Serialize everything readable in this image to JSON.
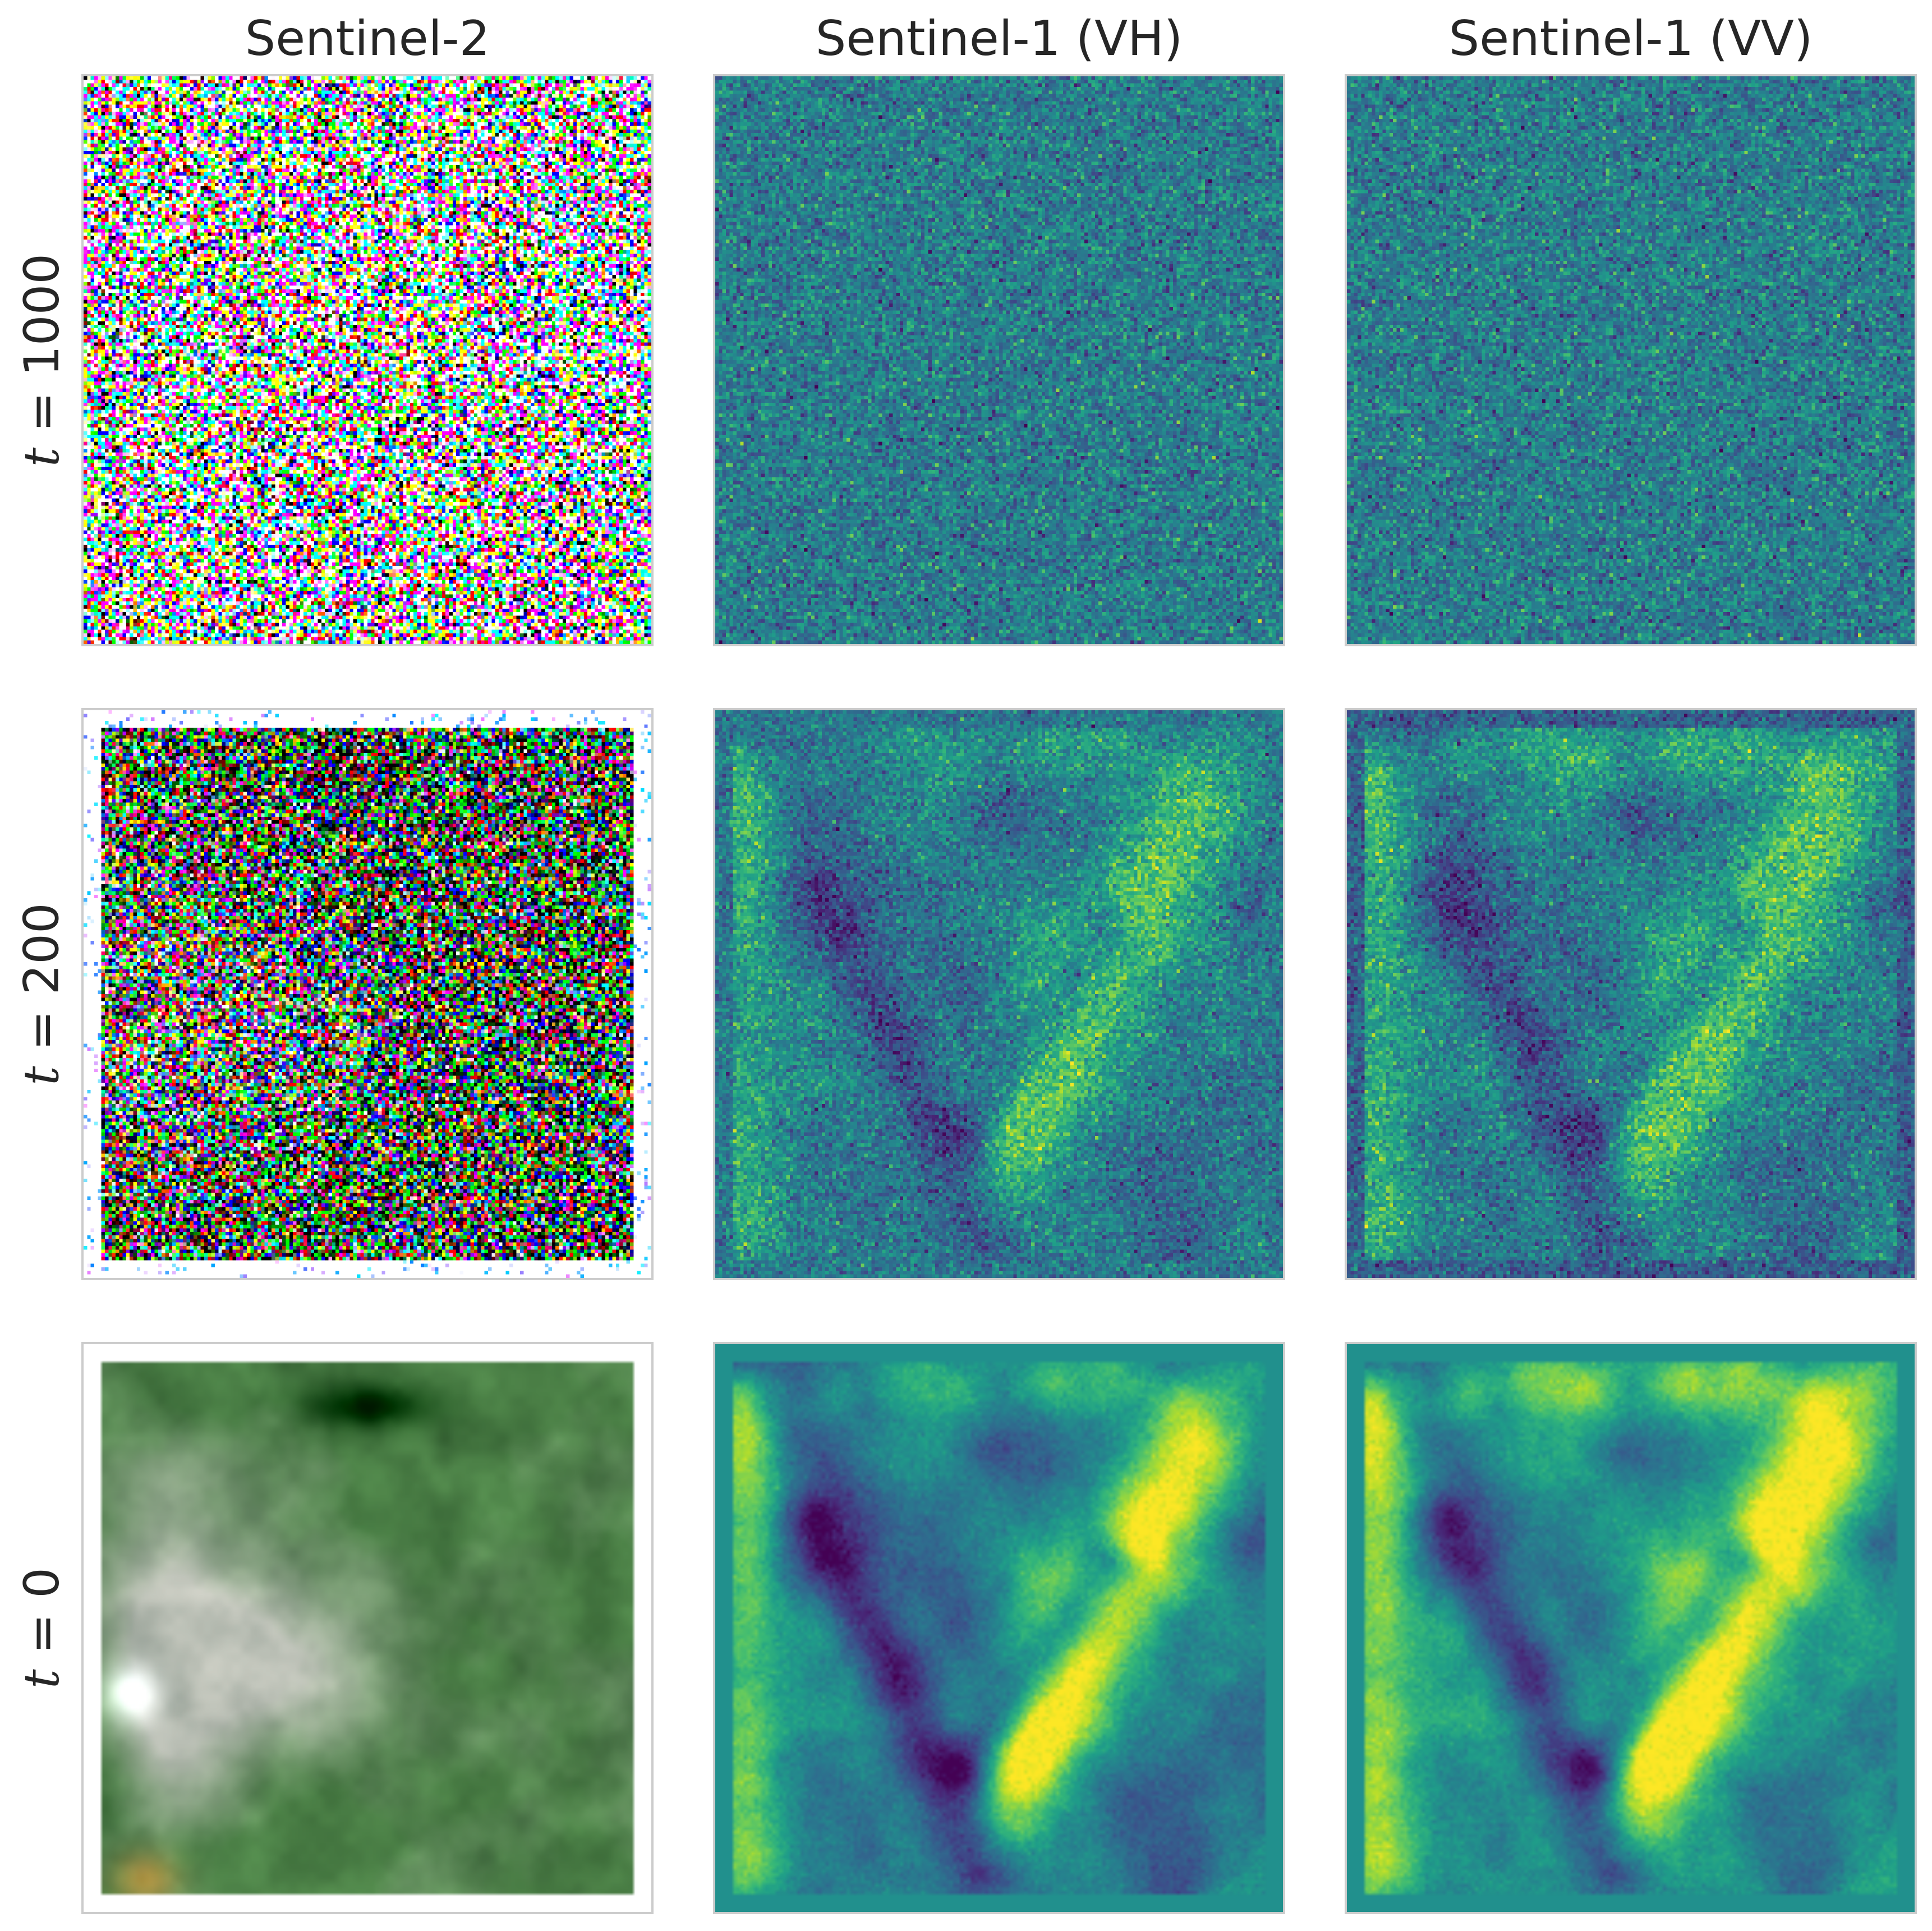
{
  "columns": [
    "Sentinel-2",
    "Sentinel-1 (VH)",
    "Sentinel-1 (VV)"
  ],
  "rows": [
    {
      "variable": "t",
      "operator": " = ",
      "value": "1000"
    },
    {
      "variable": "t",
      "operator": " = ",
      "value": "200"
    },
    {
      "variable": "t",
      "operator": " = ",
      "value": "0"
    }
  ],
  "colors": {
    "panel_border": "#cccccc",
    "sar_border_fill": "#21908d",
    "colormap": "viridis"
  }
}
